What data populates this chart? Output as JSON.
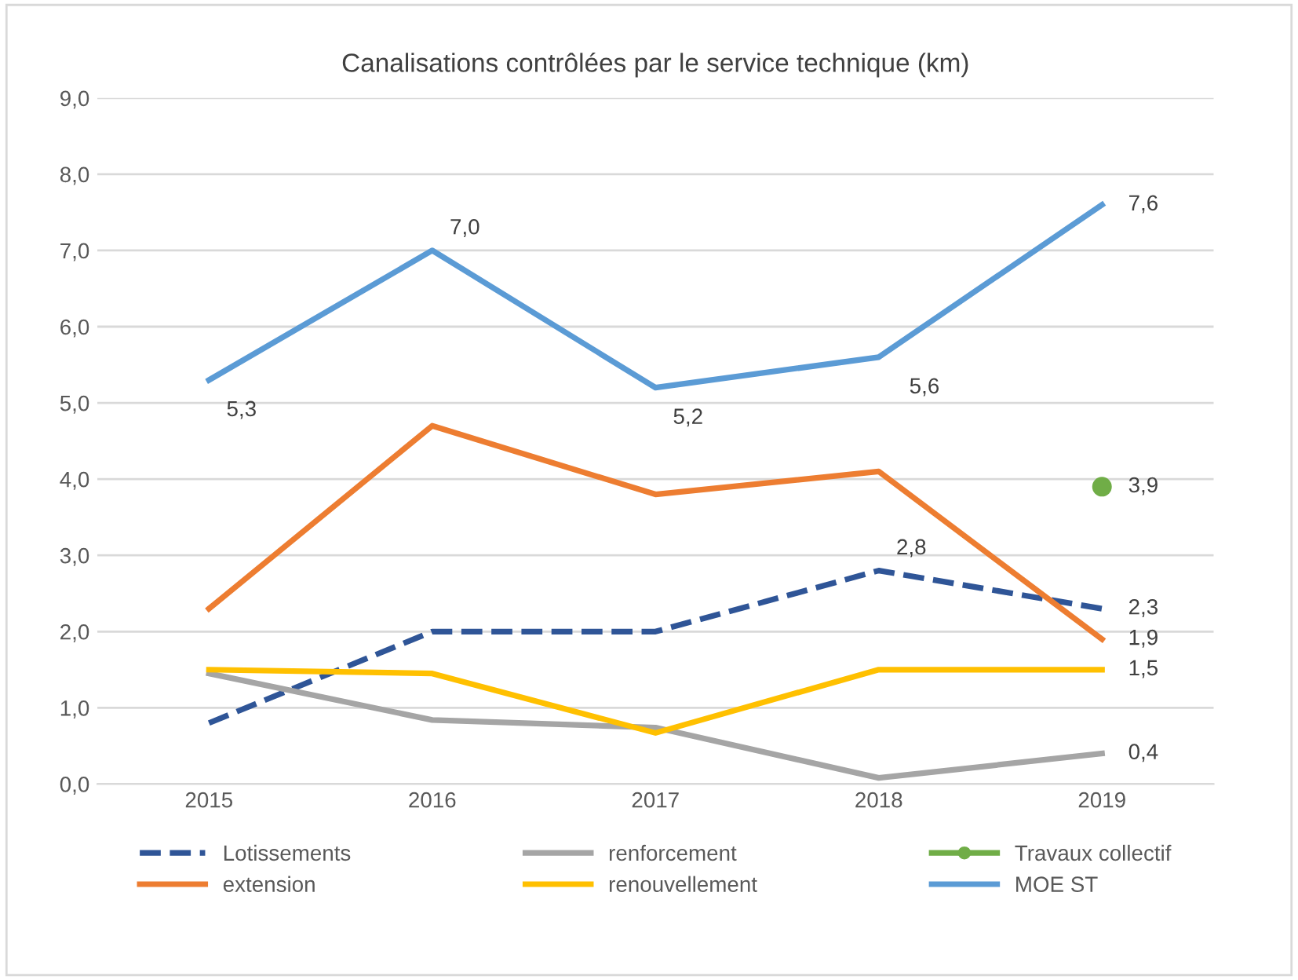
{
  "chart_data": {
    "type": "line",
    "title": "Canalisations contrôlées par le service technique (km)",
    "categories": [
      "2015",
      "2016",
      "2017",
      "2018",
      "2019"
    ],
    "ylim": [
      0,
      9
    ],
    "yticks": [
      {
        "value": 0,
        "label": "0,0"
      },
      {
        "value": 1,
        "label": "1,0"
      },
      {
        "value": 2,
        "label": "2,0"
      },
      {
        "value": 3,
        "label": "3,0"
      },
      {
        "value": 4,
        "label": "4,0"
      },
      {
        "value": 5,
        "label": "5,0"
      },
      {
        "value": 6,
        "label": "6,0"
      },
      {
        "value": 7,
        "label": "7,0"
      },
      {
        "value": 8,
        "label": "8,0"
      },
      {
        "value": 9,
        "label": "9,0"
      }
    ],
    "grid": "y",
    "legend": "bottom",
    "series": [
      {
        "name": "Lotissements",
        "color": "#2f5597",
        "line_style": "dashed",
        "values": [
          0.8,
          2.0,
          2.0,
          2.8,
          2.3
        ],
        "value_labels": [
          null,
          null,
          null,
          "2,8",
          "2,3"
        ]
      },
      {
        "name": "extension",
        "color": "#ed7d31",
        "values": [
          2.3,
          4.7,
          3.8,
          4.1,
          1.9
        ],
        "value_labels": [
          null,
          null,
          null,
          null,
          "1,9"
        ]
      },
      {
        "name": "renforcement",
        "color": "#a5a5a5",
        "values": [
          1.45,
          0.84,
          0.74,
          0.08,
          0.4
        ],
        "value_labels": [
          null,
          null,
          null,
          null,
          "0,4"
        ]
      },
      {
        "name": "renouvellement",
        "color": "#ffc000",
        "values": [
          1.5,
          1.45,
          0.67,
          1.5,
          1.5
        ],
        "value_labels": [
          null,
          null,
          null,
          null,
          "1,5"
        ]
      },
      {
        "name": "Travaux collectif",
        "color": "#70ad47",
        "marker": "circle",
        "values": [
          null,
          null,
          null,
          null,
          3.9
        ],
        "value_labels": [
          null,
          null,
          null,
          null,
          "3,9"
        ]
      },
      {
        "name": "MOE ST",
        "color": "#5b9bd5",
        "values": [
          5.3,
          7.0,
          5.2,
          5.6,
          7.6
        ],
        "value_labels": [
          "5,3",
          "7,0",
          "5,2",
          "5,6",
          "7,6"
        ]
      }
    ]
  }
}
